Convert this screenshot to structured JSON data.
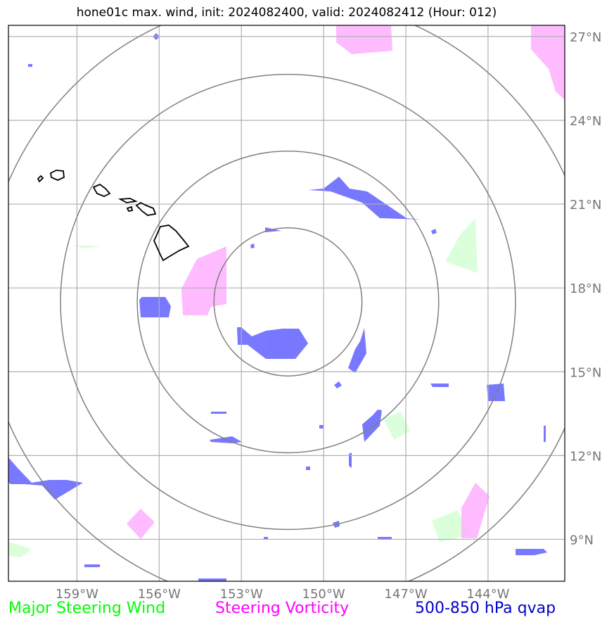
{
  "title": "hone01c max. wind, init: 2024082400, valid: 2024082412 (Hour: 012)",
  "map": {
    "lon_min": -161.5,
    "lon_max": -141.2,
    "lat_min": 7.5,
    "lat_max": 27.4,
    "center": {
      "lon": -151.3,
      "lat": 17.5
    },
    "range_ring_radii_deg": [
      2.7,
      5.5,
      8.3,
      11.1
    ],
    "grid_lons": [
      -159,
      -156,
      -153,
      -150,
      -147,
      -144
    ],
    "grid_lats": [
      9,
      12,
      15,
      18,
      21,
      24,
      27
    ],
    "lon_labels": [
      "159°W",
      "156°W",
      "153°W",
      "150°W",
      "147°W",
      "144°W"
    ],
    "lat_labels": [
      "9°N",
      "12°N",
      "15°N",
      "18°N",
      "21°N",
      "24°N",
      "27°N"
    ]
  },
  "legend": {
    "wind": {
      "label": "Major Steering Wind",
      "color": "#00ff00"
    },
    "vorticity": {
      "label": "Steering Vorticity",
      "color": "#ff00ff"
    },
    "qvap": {
      "label": "500-850 hPa qvap",
      "color": "#0000cc"
    }
  },
  "layer_colors": {
    "wind_fill": "#ccffcc",
    "vort_fill": "#ffaaff",
    "qvap_fill": "#6a6aff"
  }
}
